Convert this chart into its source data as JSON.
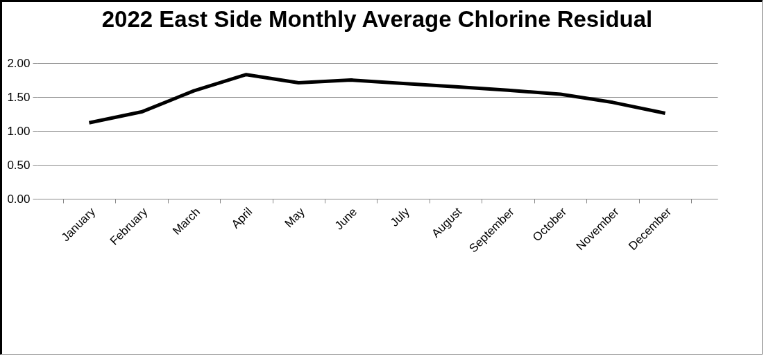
{
  "chart_data": {
    "type": "line",
    "title": "2022 East Side Monthly Average Chlorine Residual",
    "categories": [
      "January",
      "February",
      "March",
      "April",
      "May",
      "June",
      "July",
      "August",
      "September",
      "October",
      "November",
      "December"
    ],
    "series": [
      {
        "color": "#000000",
        "values": [
          1.12,
          1.28,
          1.59,
          1.83,
          1.71,
          1.75,
          1.7,
          1.65,
          1.6,
          1.54,
          1.42,
          1.26
        ]
      }
    ],
    "ylim": [
      0,
      2
    ],
    "yticks": [
      {
        "value": 0,
        "label": "0.00"
      },
      {
        "value": 0.5,
        "label": "0.50"
      },
      {
        "value": 1,
        "label": "1.00"
      },
      {
        "value": 1.5,
        "label": "1.50"
      },
      {
        "value": 2,
        "label": "2.00"
      }
    ],
    "grid": "y",
    "legend": false,
    "marker": "none",
    "line_style": "solid"
  }
}
